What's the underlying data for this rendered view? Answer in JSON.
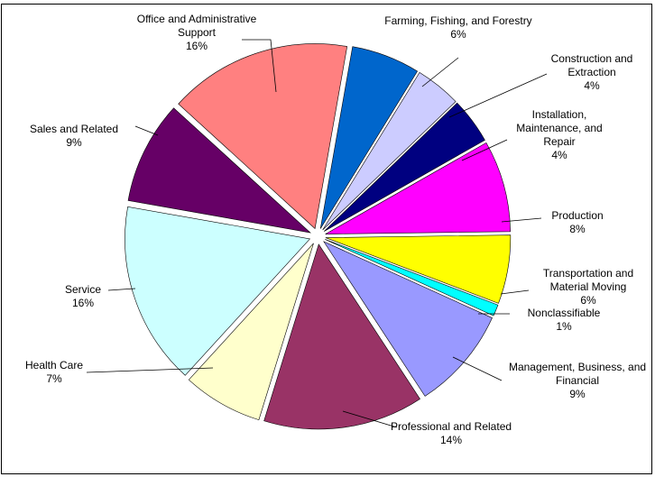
{
  "chart_data": {
    "type": "pie",
    "categories": [
      "Farming, Fishing, and Forestry",
      "Construction and Extraction",
      "Installation, Maintenance, and Repair",
      "Production",
      "Transportation and Material Moving",
      "Nonclassifiable",
      "Management, Business, and Financial",
      "Professional and Related",
      "Health Care",
      "Service",
      "Sales and Related",
      "Office and Administrative Support"
    ],
    "values": [
      6,
      4,
      4,
      8,
      6,
      1,
      9,
      14,
      7,
      16,
      9,
      16
    ],
    "value_labels": [
      "6%",
      "4%",
      "4%",
      "8%",
      "6%",
      "1%",
      "9%",
      "14%",
      "7%",
      "16%",
      "9%",
      "16%"
    ],
    "colors": [
      "#0066cc",
      "#ccccff",
      "#000080",
      "#ff00ff",
      "#ffff00",
      "#00ffff",
      "#9999ff",
      "#993366",
      "#ffffcc",
      "#ccffff",
      "#660066",
      "#ff8080"
    ]
  }
}
